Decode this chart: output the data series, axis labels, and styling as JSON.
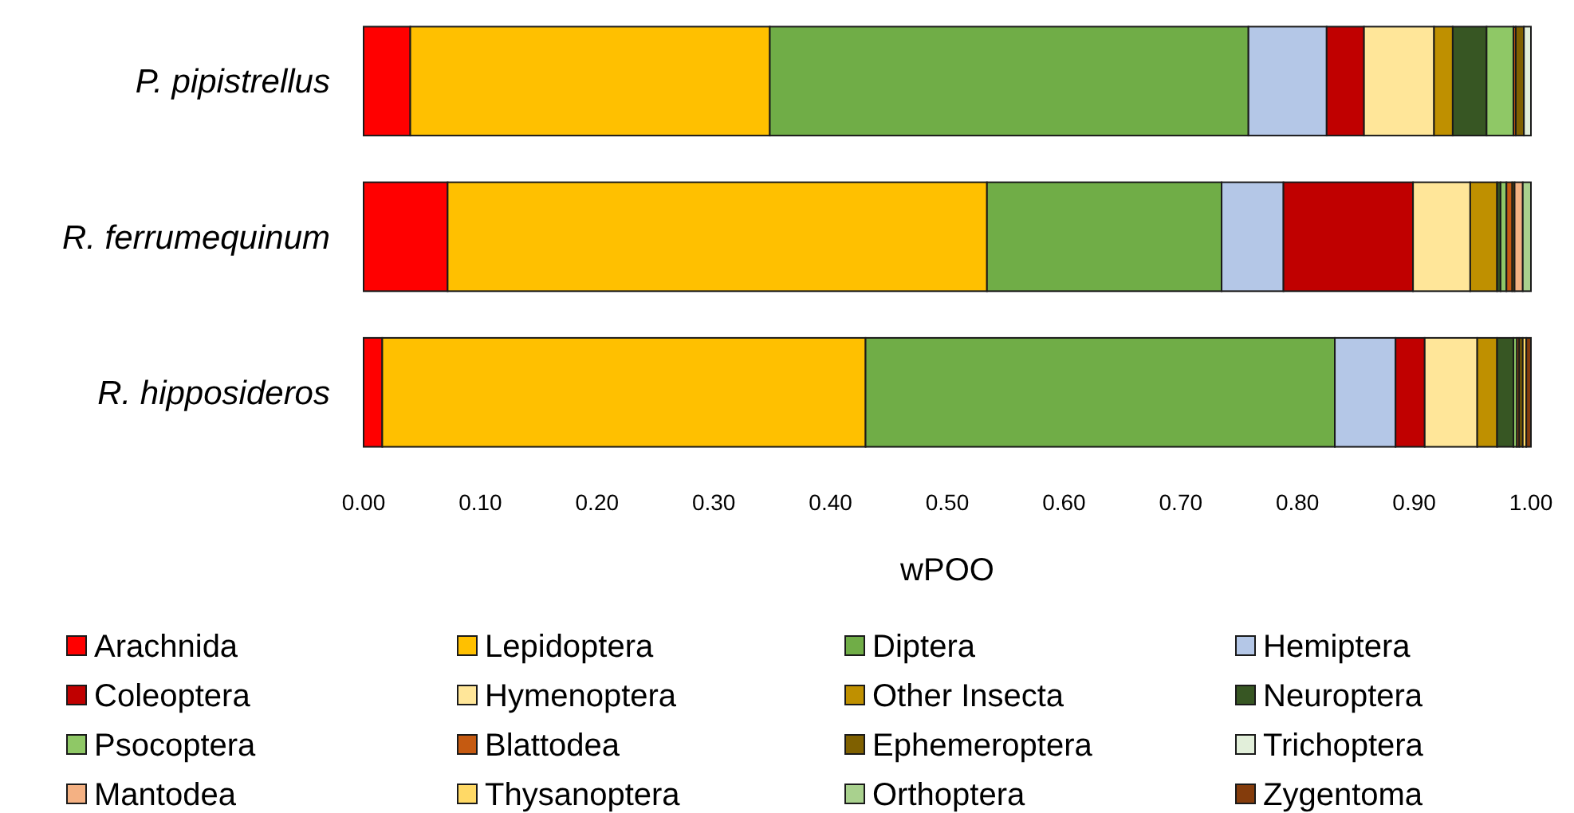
{
  "chart_data": {
    "type": "bar",
    "orientation": "horizontal",
    "stacked": true,
    "xlabel": "wPOO",
    "legend": "bottom",
    "grid": false,
    "categories": [
      "P. pipistrellus",
      "R. ferrumequinum",
      "R. hipposideros"
    ],
    "xlim": [
      0,
      1
    ],
    "xticks": [
      {
        "value": 0,
        "label": "0.00"
      },
      {
        "value": 0.1,
        "label": "0.10"
      },
      {
        "value": 0.2,
        "label": "0.20"
      },
      {
        "value": 0.3,
        "label": "0.30"
      },
      {
        "value": 0.4,
        "label": "0.40"
      },
      {
        "value": 0.5,
        "label": "0.50"
      },
      {
        "value": 0.6,
        "label": "0.60"
      },
      {
        "value": 0.7,
        "label": "0.70"
      },
      {
        "value": 0.8,
        "label": "0.80"
      },
      {
        "value": 0.9,
        "label": "0.90"
      },
      {
        "value": 1,
        "label": "1.00"
      }
    ],
    "series": [
      {
        "name": "Arachnida",
        "color": "#ff0000",
        "values": [
          0.04,
          0.072,
          0.016
        ]
      },
      {
        "name": "Lepidoptera",
        "color": "#ffc000",
        "values": [
          0.308,
          0.462,
          0.414
        ]
      },
      {
        "name": "Diptera",
        "color": "#70ad47",
        "values": [
          0.41,
          0.201,
          0.402
        ]
      },
      {
        "name": "Hemiptera",
        "color": "#b4c7e7",
        "values": [
          0.067,
          0.053,
          0.052
        ]
      },
      {
        "name": "Coleoptera",
        "color": "#c00000",
        "values": [
          0.032,
          0.111,
          0.025
        ]
      },
      {
        "name": "Hymenoptera",
        "color": "#ffe699",
        "values": [
          0.06,
          0.049,
          0.045
        ]
      },
      {
        "name": "Other Insecta",
        "color": "#bf9000",
        "values": [
          0.016,
          0.023,
          0.017
        ]
      },
      {
        "name": "Neuroptera",
        "color": "#375623",
        "values": [
          0.029,
          0.003,
          0.014
        ]
      },
      {
        "name": "Psocoptera",
        "color": "#8fc866",
        "values": [
          0.023,
          0.005,
          0.003
        ]
      },
      {
        "name": "Blattodea",
        "color": "#c55a11",
        "values": [
          0.002,
          0.005,
          0.002
        ]
      },
      {
        "name": "Ephemeroptera",
        "color": "#7f6000",
        "values": [
          0.007,
          0.002,
          0.003
        ]
      },
      {
        "name": "Trichoptera",
        "color": "#e2efda",
        "values": [
          0.006,
          0,
          0
        ]
      },
      {
        "name": "Mantodea",
        "color": "#f4b183",
        "values": [
          0,
          0.007,
          0
        ]
      },
      {
        "name": "Thysanoptera",
        "color": "#ffd966",
        "values": [
          0,
          null,
          0.003
        ]
      },
      {
        "name": "Orthoptera",
        "color": "#a9d18e",
        "values": [
          0,
          0.007,
          0
        ]
      },
      {
        "name": "Zygentoma",
        "color": "#843c0c",
        "values": [
          0,
          0,
          0.004
        ]
      }
    ]
  }
}
